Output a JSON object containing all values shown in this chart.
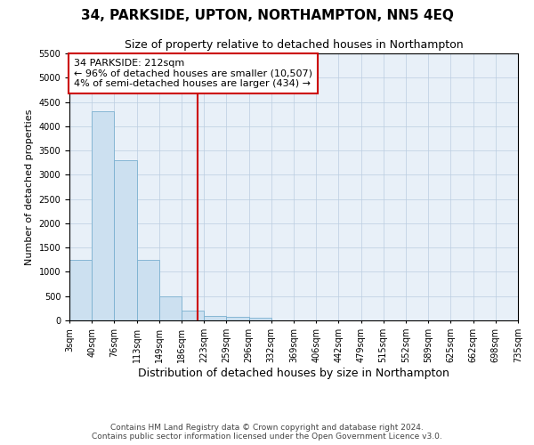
{
  "title": "34, PARKSIDE, UPTON, NORTHAMPTON, NN5 4EQ",
  "subtitle": "Size of property relative to detached houses in Northampton",
  "xlabel": "Distribution of detached houses by size in Northampton",
  "ylabel": "Number of detached properties",
  "footer_line1": "Contains HM Land Registry data © Crown copyright and database right 2024.",
  "footer_line2": "Contains public sector information licensed under the Open Government Licence v3.0.",
  "property_size": 212,
  "annotation_title": "34 PARKSIDE: 212sqm",
  "annotation_line1": "← 96% of detached houses are smaller (10,507)",
  "annotation_line2": "4% of semi-detached houses are larger (434) →",
  "bin_edges": [
    3,
    40,
    76,
    113,
    149,
    186,
    223,
    259,
    296,
    332,
    369,
    406,
    442,
    479,
    515,
    552,
    589,
    625,
    662,
    698,
    735
  ],
  "bar_heights": [
    1250,
    4300,
    3300,
    1250,
    500,
    200,
    100,
    70,
    55,
    0,
    0,
    0,
    0,
    0,
    0,
    0,
    0,
    0,
    0,
    0
  ],
  "bar_color": "#cce0f0",
  "bar_edgecolor": "#7ab0d0",
  "vline_x": 212,
  "vline_color": "#cc0000",
  "ylim_max": 5500,
  "yticks": [
    0,
    500,
    1000,
    1500,
    2000,
    2500,
    3000,
    3500,
    4000,
    4500,
    5000,
    5500
  ],
  "grid_color": "#bbcde0",
  "background_color": "#e8f0f8",
  "title_fontsize": 11,
  "subtitle_fontsize": 9,
  "annotation_fontsize": 8,
  "ylabel_fontsize": 8,
  "xlabel_fontsize": 9,
  "tick_fontsize": 7,
  "footer_fontsize": 6.5
}
